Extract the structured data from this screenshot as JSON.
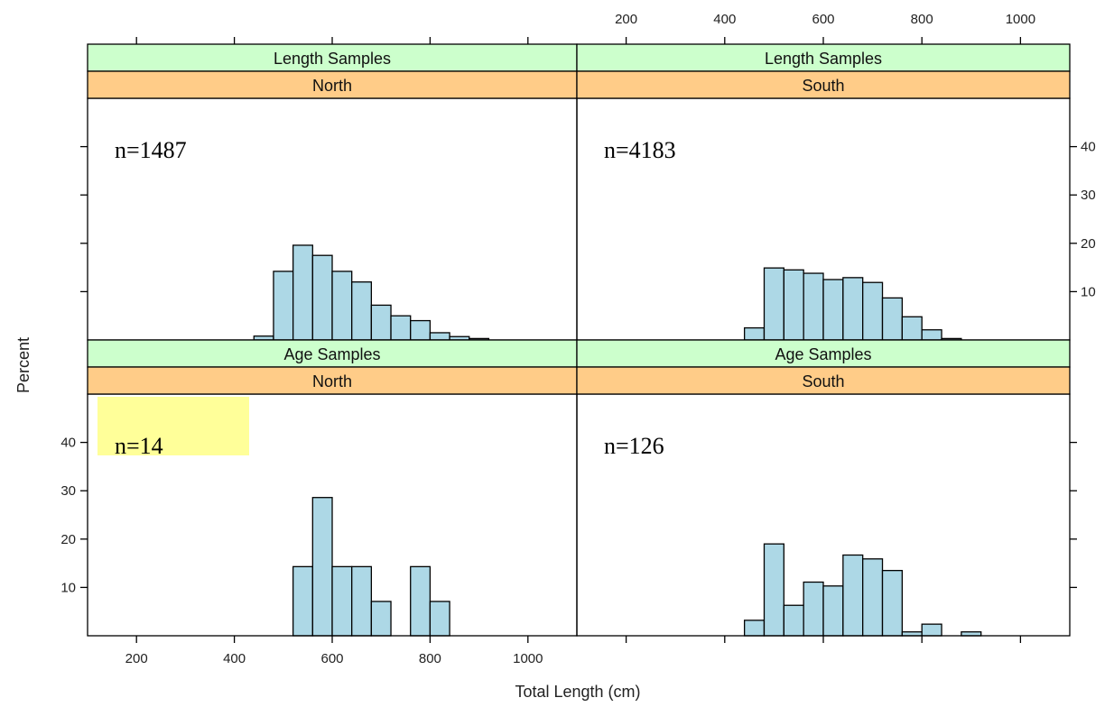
{
  "chart_data": {
    "type": "bar",
    "subtype": "histogram-lattice",
    "xlabel": "Total Length (cm)",
    "ylabel": "Percent",
    "xlim": [
      100,
      1100
    ],
    "ylim": [
      0,
      50
    ],
    "x_ticks": [
      200,
      400,
      600,
      800,
      1000
    ],
    "y_ticks": [
      10,
      20,
      30,
      40
    ],
    "bin_width": 40,
    "colors": {
      "bar_fill": "#add8e6",
      "bar_stroke": "#000000",
      "strip_outer": "#ccffcc",
      "strip_inner": "#ffcc88",
      "highlight": "#ffff99"
    },
    "panels": [
      {
        "strip_outer": "Length Samples",
        "strip_inner": "North",
        "n_label": "n=1487",
        "highlight": false,
        "bins": [
          {
            "x0": 440,
            "x1": 480,
            "value": 0.8
          },
          {
            "x0": 480,
            "x1": 520,
            "value": 14.2
          },
          {
            "x0": 520,
            "x1": 560,
            "value": 19.6
          },
          {
            "x0": 560,
            "x1": 600,
            "value": 17.5
          },
          {
            "x0": 600,
            "x1": 640,
            "value": 14.2
          },
          {
            "x0": 640,
            "x1": 680,
            "value": 12.0
          },
          {
            "x0": 680,
            "x1": 720,
            "value": 7.2
          },
          {
            "x0": 720,
            "x1": 760,
            "value": 5.0
          },
          {
            "x0": 760,
            "x1": 800,
            "value": 4.0
          },
          {
            "x0": 800,
            "x1": 840,
            "value": 1.5
          },
          {
            "x0": 840,
            "x1": 880,
            "value": 0.7
          },
          {
            "x0": 880,
            "x1": 920,
            "value": 0.3
          }
        ]
      },
      {
        "strip_outer": "Length Samples",
        "strip_inner": "South",
        "n_label": "n=4183",
        "highlight": false,
        "bins": [
          {
            "x0": 440,
            "x1": 480,
            "value": 2.5
          },
          {
            "x0": 480,
            "x1": 520,
            "value": 14.9
          },
          {
            "x0": 520,
            "x1": 560,
            "value": 14.5
          },
          {
            "x0": 560,
            "x1": 600,
            "value": 13.8
          },
          {
            "x0": 600,
            "x1": 640,
            "value": 12.5
          },
          {
            "x0": 640,
            "x1": 680,
            "value": 12.9
          },
          {
            "x0": 680,
            "x1": 720,
            "value": 11.9
          },
          {
            "x0": 720,
            "x1": 760,
            "value": 8.7
          },
          {
            "x0": 760,
            "x1": 800,
            "value": 4.8
          },
          {
            "x0": 800,
            "x1": 840,
            "value": 2.1
          },
          {
            "x0": 840,
            "x1": 880,
            "value": 0.3
          }
        ]
      },
      {
        "strip_outer": "Age Samples",
        "strip_inner": "North",
        "n_label": "n=14",
        "highlight": true,
        "bins": [
          {
            "x0": 520,
            "x1": 560,
            "value": 14.3
          },
          {
            "x0": 560,
            "x1": 600,
            "value": 28.6
          },
          {
            "x0": 600,
            "x1": 640,
            "value": 14.3
          },
          {
            "x0": 640,
            "x1": 680,
            "value": 14.3
          },
          {
            "x0": 680,
            "x1": 720,
            "value": 7.1
          },
          {
            "x0": 760,
            "x1": 800,
            "value": 14.3
          },
          {
            "x0": 800,
            "x1": 840,
            "value": 7.1
          }
        ]
      },
      {
        "strip_outer": "Age Samples",
        "strip_inner": "South",
        "n_label": "n=126",
        "highlight": false,
        "bins": [
          {
            "x0": 440,
            "x1": 480,
            "value": 3.2
          },
          {
            "x0": 480,
            "x1": 520,
            "value": 19.0
          },
          {
            "x0": 520,
            "x1": 560,
            "value": 6.3
          },
          {
            "x0": 560,
            "x1": 600,
            "value": 11.1
          },
          {
            "x0": 600,
            "x1": 640,
            "value": 10.3
          },
          {
            "x0": 640,
            "x1": 680,
            "value": 16.7
          },
          {
            "x0": 680,
            "x1": 720,
            "value": 15.9
          },
          {
            "x0": 720,
            "x1": 760,
            "value": 13.5
          },
          {
            "x0": 760,
            "x1": 800,
            "value": 0.8
          },
          {
            "x0": 800,
            "x1": 840,
            "value": 2.4
          },
          {
            "x0": 880,
            "x1": 920,
            "value": 0.8
          }
        ]
      }
    ]
  }
}
